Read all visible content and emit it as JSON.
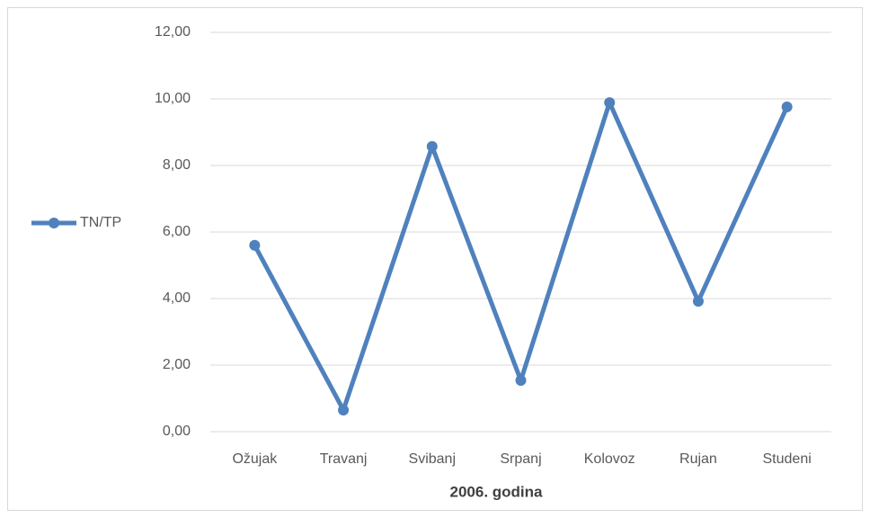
{
  "chart_data": {
    "type": "line",
    "x_label": "2006. godina",
    "categories": [
      "Ožujak",
      "Travanj",
      "Svibanj",
      "Srpanj",
      "Kolovoz",
      "Rujan",
      "Studeni"
    ],
    "series": [
      {
        "name": "TN/TP",
        "color": "#4f81bd",
        "values": [
          5.6,
          0.65,
          8.57,
          1.54,
          9.89,
          3.92,
          9.76
        ]
      }
    ],
    "ylim": [
      0,
      12
    ],
    "yticks": [
      {
        "value": 0,
        "label": "0,00"
      },
      {
        "value": 2,
        "label": "2,00"
      },
      {
        "value": 4,
        "label": "4,00"
      },
      {
        "value": 6,
        "label": "6,00"
      },
      {
        "value": 8,
        "label": "8,00"
      },
      {
        "value": 10,
        "label": "10,00"
      },
      {
        "value": 12,
        "label": "12,00"
      }
    ],
    "grid": true,
    "legend": "left"
  }
}
